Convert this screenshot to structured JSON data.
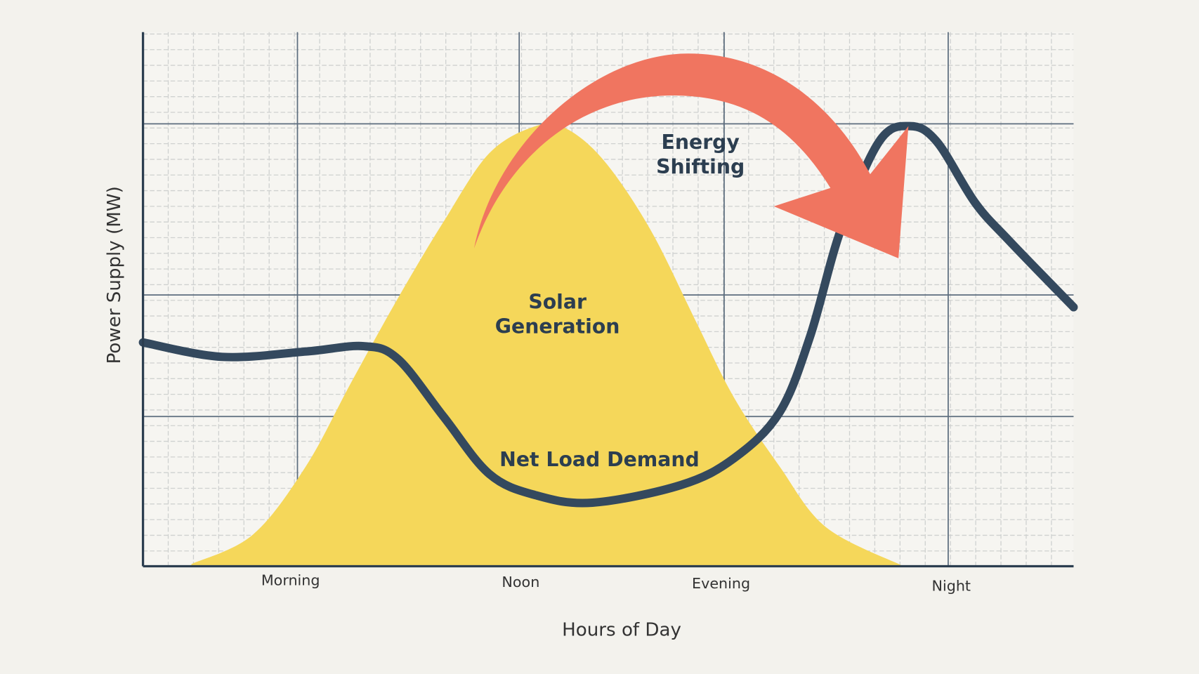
{
  "chart_data": {
    "type": "area",
    "title": "",
    "xlabel": "Hours of Day",
    "ylabel": "Power Supply (MW)",
    "xlim": [
      0,
      100
    ],
    "ylim": [
      0,
      100
    ],
    "grid": true,
    "x_ticks": [
      {
        "label": "Morning",
        "x": 15.8
      },
      {
        "label": "Noon",
        "x": 40.6
      },
      {
        "label": "Evening",
        "x": 62.1
      },
      {
        "label": "Night",
        "x": 86.8
      }
    ],
    "series": [
      {
        "name": "Solar Generation",
        "kind": "area",
        "color": "#f5d75a",
        "x": [
          5.2,
          11.8,
          17.5,
          22.4,
          27.4,
          32.3,
          37.2,
          42.2,
          45.4,
          49.5,
          54.5,
          59.4,
          63.5,
          68.4,
          73.4,
          81.6
        ],
        "y": [
          0.4,
          5.9,
          18.7,
          34.5,
          50.2,
          64.5,
          77.3,
          82.4,
          82.0,
          76.0,
          63.1,
          45.9,
          31.6,
          18.7,
          7.3,
          0.1
        ]
      },
      {
        "name": "Net Load Demand",
        "kind": "line",
        "color": "#34495e",
        "x": [
          0,
          8.5,
          17.5,
          23.7,
          27.4,
          32.3,
          37.2,
          42.2,
          48.3,
          57.8,
          63.5,
          68.4,
          71.7,
          75.0,
          79.1,
          82.4,
          85.3,
          89.4,
          93.1,
          100
        ],
        "y": [
          41.9,
          39.2,
          40.2,
          41.2,
          38.8,
          28.0,
          17.3,
          13.3,
          11.9,
          15.2,
          20.2,
          28.8,
          43.1,
          63.1,
          79.5,
          82.4,
          79.5,
          68.1,
          60.9,
          48.5
        ]
      }
    ],
    "annotations": [
      {
        "text_lines": [
          "Energy",
          "Shifting"
        ],
        "kind": "curved-arrow",
        "color": "#f07560",
        "from": "Solar Generation peak",
        "to": "Net Load Demand evening peak"
      },
      {
        "text_lines": [
          "Solar",
          "Generation"
        ]
      },
      {
        "text_lines": [
          "Net Load Demand"
        ]
      }
    ]
  }
}
